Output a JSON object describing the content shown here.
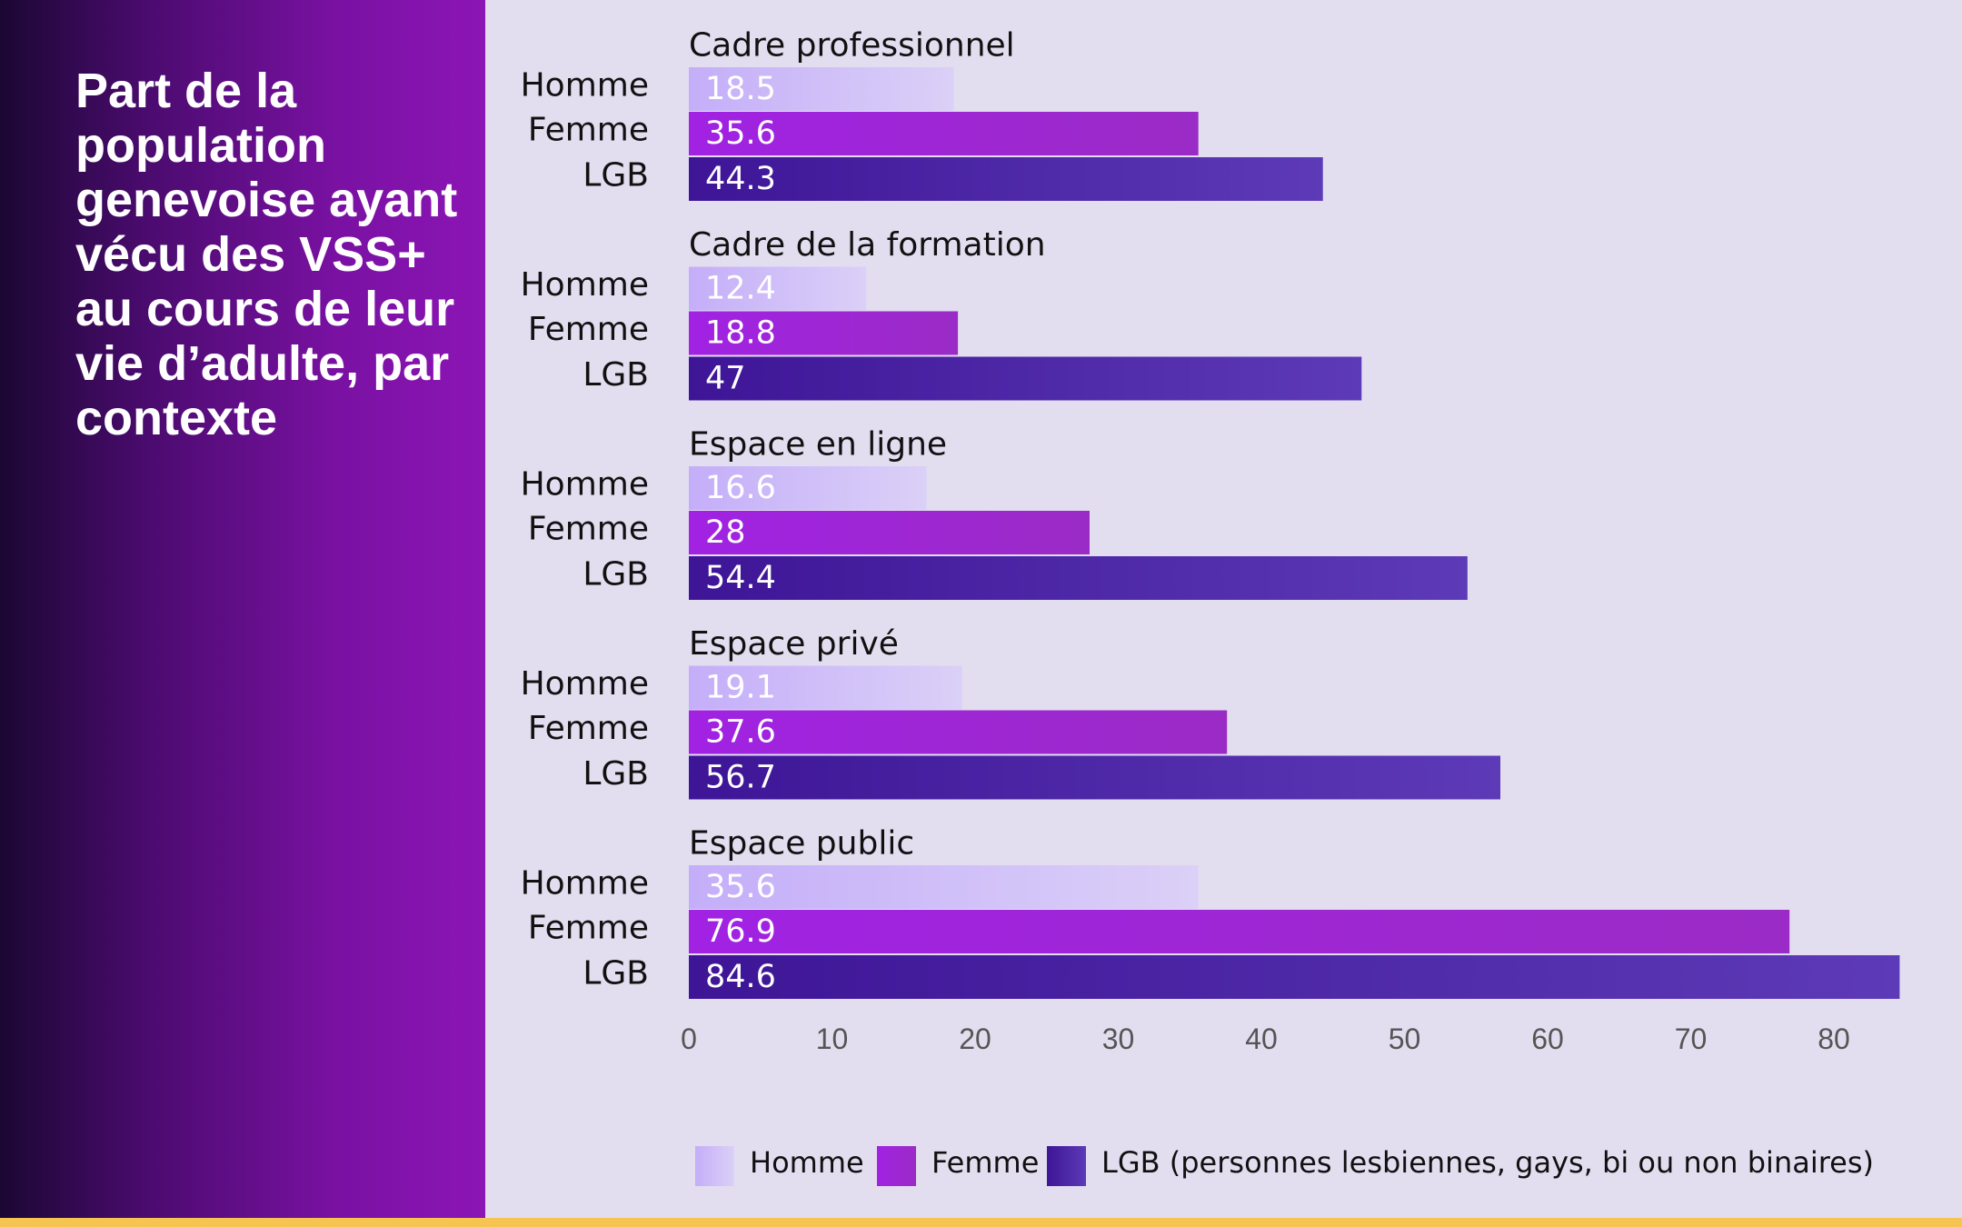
{
  "title": "Part de la population genevoise ayant vécu des VSS+ au cours de leur vie d’adulte, par contexte",
  "colors": {
    "panel_dark": "#1b0733",
    "panel_light": "#8c15b5",
    "background": "#e2def0",
    "accent_strip": "#f5c451"
  },
  "chart_data": {
    "type": "bar",
    "orientation": "horizontal",
    "title": "Part de la population genevoise ayant vécu des VSS+ au cours de leur vie d’adulte, par contexte",
    "xlabel": "",
    "ylabel": "",
    "xlim": [
      0,
      85
    ],
    "x_ticks": [
      0,
      10,
      20,
      30,
      40,
      50,
      60,
      70,
      80
    ],
    "grid": false,
    "categories": [
      "Cadre professionnel",
      "Cadre de la formation",
      "Espace en ligne",
      "Espace privé",
      "Espace public"
    ],
    "series": [
      {
        "key": "homme",
        "name": "Homme",
        "legend": "Homme",
        "color_from": "#c4aef9",
        "color_to": "#dbd0f7",
        "values": [
          18.5,
          12.4,
          16.6,
          19.1,
          35.6
        ]
      },
      {
        "key": "femme",
        "name": "Femme",
        "legend": "Femme",
        "color_from": "#a122e3",
        "color_to": "#9b2bc6",
        "values": [
          35.6,
          18.8,
          28,
          37.6,
          76.9
        ]
      },
      {
        "key": "lgb",
        "name": "LGB",
        "legend": "LGB (personnes lesbiennes, gays, bi ou non binaires)",
        "color_from": "#3d1596",
        "color_to": "#5d3ab7",
        "values": [
          44.3,
          47,
          54.4,
          56.7,
          84.6
        ]
      }
    ],
    "legend_position": "bottom"
  }
}
